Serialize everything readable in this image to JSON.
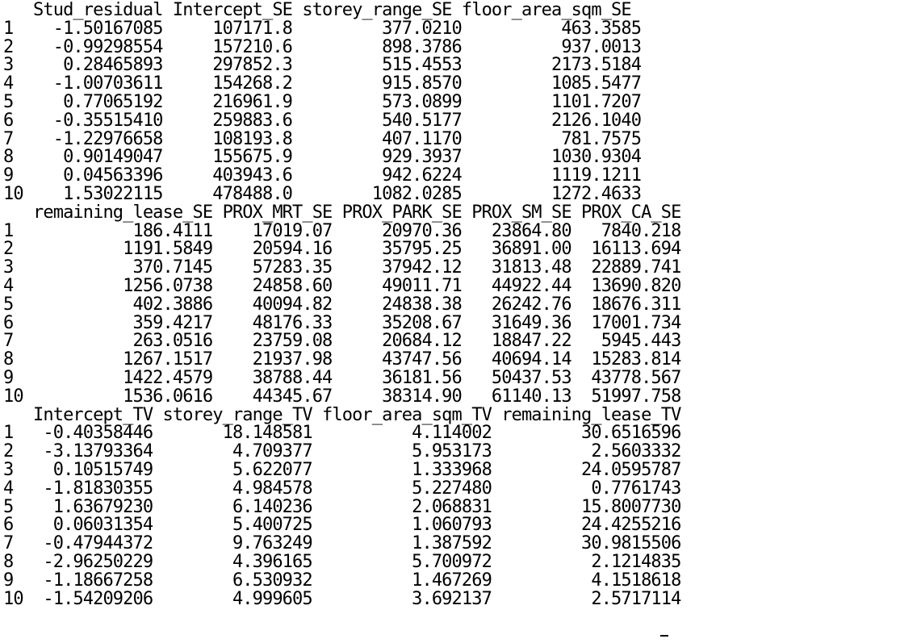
{
  "blocks": [
    {
      "header": "   Stud_residual Intercept_SE storey_range_SE floor_area_sqm_SE",
      "rows": [
        "1    -1.50167085     107171.8         377.0210          463.3585",
        "2    -0.99298554     157210.6         898.3786          937.0013",
        "3     0.28465893     297852.3         515.4553         2173.5184",
        "4    -1.00703611     154268.2         915.8570         1085.5477",
        "5     0.77065192     216961.9         573.0899         1101.7207",
        "6    -0.35515410     259883.6         540.5177         2126.1040",
        "7    -1.22976658     108193.8         407.1170          781.7575",
        "8     0.90149047     155675.9         929.3937         1030.9304",
        "9     0.04563396     403943.6         942.6224         1119.1211",
        "10    1.53022115     478488.0        1082.0285         1272.4633"
      ]
    },
    {
      "header": "   remaining_lease_SE PROX_MRT_SE PROX_PARK_SE PROX_SM_SE PROX_CA_SE",
      "rows": [
        "1            186.4111    17019.07     20970.36   23864.80   7840.218",
        "2           1191.5849    20594.16     35795.25   36891.00  16113.694",
        "3            370.7145    57283.35     37942.12   31813.48  22889.741",
        "4           1256.0738    24858.60     49011.71   44922.44  13690.820",
        "5            402.3886    40094.82     24838.38   26242.76  18676.311",
        "6            359.4217    48176.33     35208.67   31649.36  17001.734",
        "7            263.0516    23759.08     20684.12   18847.22   5945.443",
        "8           1267.1517    21937.98     43747.56   40694.14  15283.814",
        "9           1422.4579    38788.44     36181.56   50437.53  43778.567",
        "10          1536.0616    44345.67     38314.90   61140.13  51997.758"
      ]
    },
    {
      "header": "   Intercept_TV storey_range_TV floor_area_sqm_TV remaining_lease_TV",
      "rows": [
        "1   -0.40358446       18.148581          4.114002         30.6516596",
        "2   -3.13793364        4.709377          5.953173          2.5603332",
        "3    0.10515749        5.622077          1.333968         24.0595787",
        "4   -1.81830355        4.984578          5.227480          0.7761743",
        "5    1.63679230        6.140236          2.068831         15.8007730",
        "6    0.06031354        5.400725          1.060793         24.4255216",
        "7   -0.47944372        9.763249          1.387592         30.9815506",
        "8   -2.96250229        4.396165          5.700972          2.1214835",
        "9   -1.18667258        6.530932          1.467269          4.1518618",
        "10  -1.54209206        4.999605          3.692137          2.5717114"
      ]
    }
  ]
}
